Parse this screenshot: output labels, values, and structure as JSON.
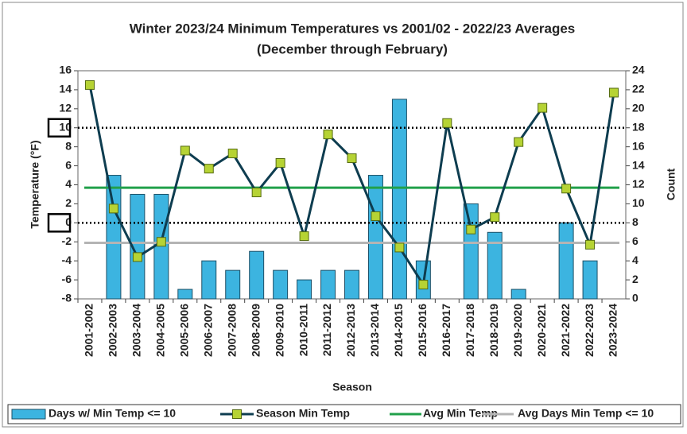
{
  "chart_data": {
    "type": "bar_line",
    "title": "Winter 2023/24 Minimum Temperatures vs 2001/02 - 2022/23 Averages",
    "subtitle": "(December through February)",
    "x_label": "Season",
    "y_label": "Temperature (°F)",
    "y2_label": "Count",
    "categories": [
      "2001-2002",
      "2002-2003",
      "2003-2004",
      "2004-2005",
      "2005-2006",
      "2006-2007",
      "2007-2008",
      "2008-2009",
      "2009-2010",
      "2010-2011",
      "2011-2012",
      "2012-2013",
      "2013-2014",
      "2014-2015",
      "2015-2016",
      "2016-2017",
      "2017-2018",
      "2018-2019",
      "2019-2020",
      "2020-2021",
      "2021-2022",
      "2022-2023",
      "2023-2024"
    ],
    "series": [
      {
        "name": "Days w/ Min Temp <= 10",
        "type": "bar",
        "axis": "y2",
        "color": "#3cb4e0",
        "values": [
          0,
          13,
          11,
          11,
          1,
          4,
          3,
          5,
          3,
          2,
          3,
          3,
          13,
          21,
          4,
          0,
          10,
          7,
          1,
          0,
          8,
          4,
          0
        ]
      },
      {
        "name": "Season Min Temp",
        "type": "line",
        "axis": "y",
        "color": "#0e3d50",
        "marker_color": "#b6d334",
        "values": [
          14.5,
          1.5,
          -3.6,
          -2.0,
          7.6,
          5.7,
          7.3,
          3.2,
          6.3,
          -1.4,
          9.3,
          6.8,
          0.7,
          -2.6,
          -6.5,
          10.5,
          -0.7,
          0.6,
          8.5,
          12.1,
          3.6,
          -2.3,
          13.7
        ]
      }
    ],
    "avg_lines": [
      {
        "name": "Avg Min Temp",
        "axis": "y",
        "color": "#21a04a",
        "value": 3.7
      },
      {
        "name": "Avg Days Min Temp <= 10",
        "axis": "y2",
        "color": "#b4b4b4",
        "value": 5.9
      }
    ],
    "reference_lines": [
      10,
      0
    ],
    "ylim": [
      -8,
      16
    ],
    "yticks": [
      -8,
      -6,
      -4,
      -2,
      0,
      2,
      4,
      6,
      8,
      10,
      12,
      14,
      16
    ],
    "y2lim": [
      0,
      24
    ],
    "y2ticks": [
      0,
      2,
      4,
      6,
      8,
      10,
      12,
      14,
      16,
      18,
      20,
      22,
      24
    ]
  }
}
